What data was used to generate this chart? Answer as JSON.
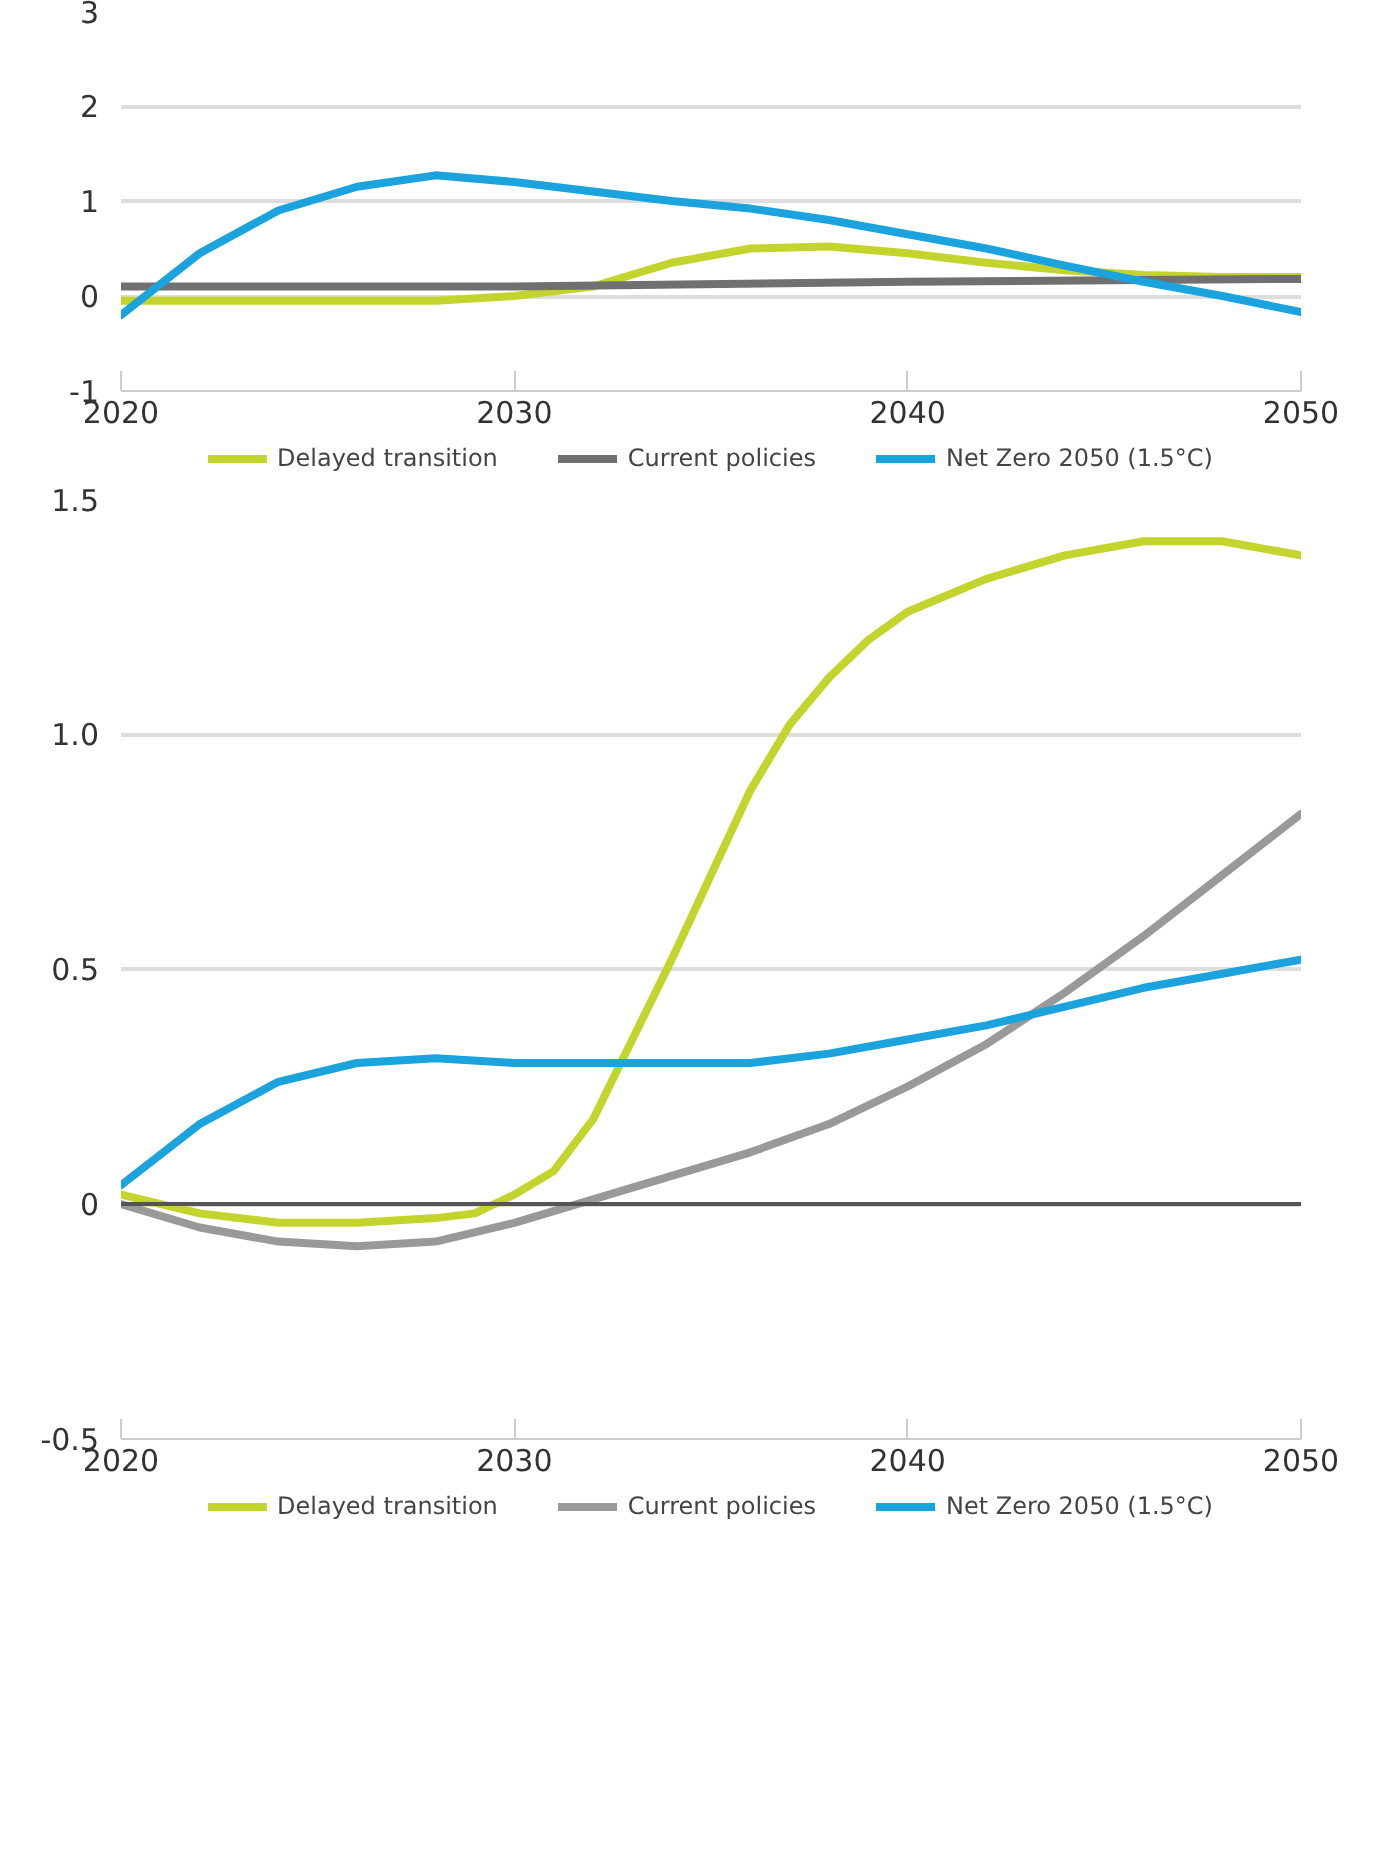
{
  "chart_data": [
    {
      "type": "line",
      "xlim": [
        2020,
        2050
      ],
      "xticks": [
        2020,
        2030,
        2040,
        2050
      ],
      "ylim": [
        -1,
        3
      ],
      "yticks": [
        -1,
        0,
        1,
        2,
        3
      ],
      "grid": "y",
      "legend": "bottom",
      "line_style": "solid",
      "marker": "none",
      "series": [
        {
          "name": "Delayed transition",
          "color": "#c3d52d",
          "x": [
            2020,
            2022,
            2024,
            2026,
            2028,
            2030,
            2032,
            2034,
            2036,
            2038,
            2040,
            2042,
            2044,
            2046,
            2048,
            2050
          ],
          "values": [
            -0.05,
            -0.05,
            -0.05,
            -0.05,
            -0.05,
            0.0,
            0.1,
            0.35,
            0.5,
            0.52,
            0.45,
            0.35,
            0.27,
            0.22,
            0.2,
            0.2
          ]
        },
        {
          "name": "Current policies",
          "color": "#707070",
          "x": [
            2020,
            2030,
            2040,
            2050
          ],
          "values": [
            0.1,
            0.1,
            0.15,
            0.18
          ]
        },
        {
          "name": "Net Zero 2050 (1.5°C)",
          "color": "#1aa3dc",
          "x": [
            2020,
            2022,
            2024,
            2026,
            2028,
            2030,
            2032,
            2034,
            2036,
            2038,
            2040,
            2042,
            2044,
            2046,
            2048,
            2050
          ],
          "values": [
            -0.2,
            0.45,
            0.9,
            1.15,
            1.27,
            1.2,
            1.1,
            1.0,
            0.92,
            0.8,
            0.65,
            0.5,
            0.32,
            0.15,
            0.0,
            -0.17
          ]
        }
      ]
    },
    {
      "type": "line",
      "xlim": [
        2020,
        2050
      ],
      "xticks": [
        2020,
        2030,
        2040,
        2050
      ],
      "ylim": [
        -0.5,
        1.5
      ],
      "yticks": [
        -0.5,
        0,
        0.5,
        {
          "value": 1,
          "label": "1.0"
        },
        1.5
      ],
      "grid": "y",
      "legend": "bottom",
      "line_style": "solid",
      "marker": "none",
      "ref_lines": [
        {
          "axis": "y",
          "value": 0,
          "color": "#555555"
        }
      ],
      "series": [
        {
          "name": "Delayed transition",
          "color": "#c3d52d",
          "x": [
            2020,
            2022,
            2024,
            2026,
            2028,
            2029,
            2030,
            2031,
            2032,
            2033,
            2034,
            2035,
            2036,
            2037,
            2038,
            2039,
            2040,
            2042,
            2044,
            2046,
            2048,
            2050
          ],
          "values": [
            0.02,
            -0.02,
            -0.04,
            -0.04,
            -0.03,
            -0.02,
            0.02,
            0.07,
            0.18,
            0.35,
            0.52,
            0.7,
            0.88,
            1.02,
            1.12,
            1.2,
            1.26,
            1.33,
            1.38,
            1.41,
            1.41,
            1.38
          ]
        },
        {
          "name": "Current policies",
          "color": "#999999",
          "x": [
            2020,
            2022,
            2024,
            2026,
            2028,
            2030,
            2032,
            2034,
            2036,
            2038,
            2040,
            2042,
            2044,
            2046,
            2048,
            2050
          ],
          "values": [
            0,
            -0.05,
            -0.08,
            -0.09,
            -0.08,
            -0.04,
            0.01,
            0.06,
            0.11,
            0.17,
            0.25,
            0.34,
            0.45,
            0.57,
            0.7,
            0.83
          ]
        },
        {
          "name": "Net Zero 2050 (1.5°C)",
          "color": "#1aa3dc",
          "x": [
            2020,
            2022,
            2024,
            2026,
            2028,
            2030,
            2032,
            2034,
            2036,
            2038,
            2040,
            2042,
            2044,
            2046,
            2048,
            2050
          ],
          "values": [
            0.04,
            0.17,
            0.26,
            0.3,
            0.31,
            0.3,
            0.3,
            0.3,
            0.3,
            0.32,
            0.35,
            0.38,
            0.42,
            0.46,
            0.49,
            0.52
          ]
        }
      ]
    }
  ]
}
